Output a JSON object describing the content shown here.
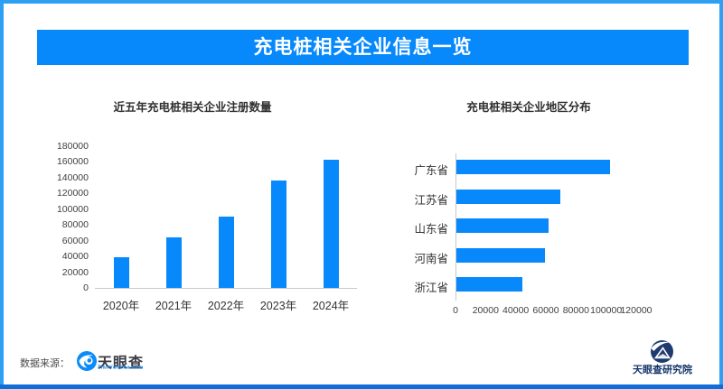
{
  "page": {
    "title": "充电桩相关企业信息一览",
    "source_label": "数据来源：",
    "brand": {
      "name": "天眼查",
      "domain": "TianYanCha.com"
    },
    "research_brand": "天眼查研究院",
    "colors": {
      "accent_blue": "#0789fb",
      "frame_blue": "#2ea0f4",
      "frame_bottom_blue": "#0e6fdb",
      "brand_navy": "#16356b",
      "axis_gray": "#c9c9c9",
      "text_dark": "#2f2f2f"
    }
  },
  "chart_data": [
    {
      "type": "bar",
      "title": "近五年充电桩相关企业注册数量",
      "categories": [
        "2020年",
        "2021年",
        "2022年",
        "2023年",
        "2024年"
      ],
      "values": [
        39000,
        64000,
        91000,
        136000,
        163000
      ],
      "xlabel": "",
      "ylabel": "",
      "ylim": [
        0,
        180000
      ],
      "ytick_step": 20000,
      "grid": "off",
      "legend": "none",
      "bar_color": "#0789fb"
    },
    {
      "type": "bar-horizontal",
      "title": "充电桩相关企业地区分布",
      "categories": [
        "广东省",
        "江苏省",
        "山东省",
        "河南省",
        "浙江省"
      ],
      "values": [
        102000,
        69000,
        61000,
        59000,
        44000
      ],
      "xlabel": "",
      "ylabel": "",
      "xlim": [
        0,
        120000
      ],
      "xtick_step": 20000,
      "grid": "off",
      "legend": "none",
      "bar_color": "#0789fb"
    }
  ]
}
